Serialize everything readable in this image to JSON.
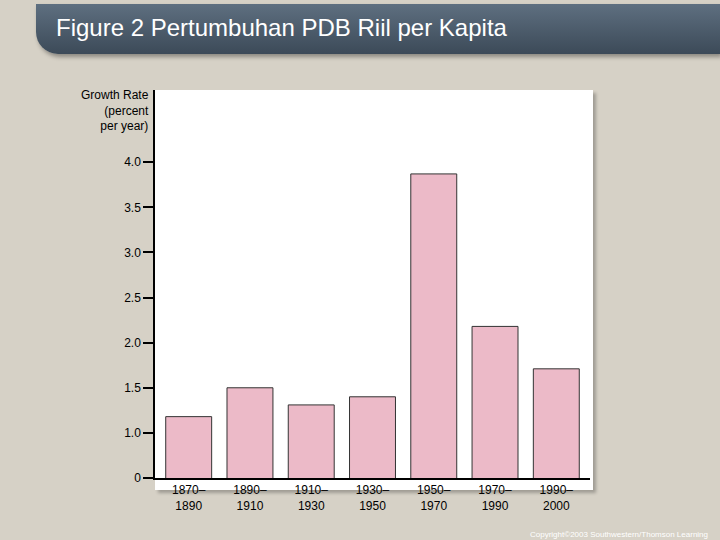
{
  "chart_data": {
    "type": "bar",
    "title": "Figure 2 Pertumbuhan PDB Riil per Kapita",
    "ylabel": "Growth Rate\n(percent\nper year)",
    "categories": [
      "1870–1890",
      "1890–1910",
      "1910–1930",
      "1930–1950",
      "1950–1970",
      "1970–1990",
      "1990–2000"
    ],
    "values": [
      1.18,
      1.5,
      1.31,
      1.4,
      3.87,
      2.18,
      1.71
    ],
    "color": "#ecbac8",
    "ylim": [
      0.5,
      4.8
    ],
    "yticks": [
      {
        "value": 0.5,
        "label": "0"
      },
      {
        "value": 1.0,
        "label": "1.0"
      },
      {
        "value": 1.5,
        "label": "1.5"
      },
      {
        "value": 2.0,
        "label": "2.0"
      },
      {
        "value": 2.5,
        "label": "2.5"
      },
      {
        "value": 3.0,
        "label": "3.0"
      },
      {
        "value": 3.5,
        "label": "3.5"
      },
      {
        "value": 4.0,
        "label": "4.0"
      }
    ],
    "grid": false,
    "credit": "Copyright©2003 Southwestern/Thomson Learning"
  }
}
